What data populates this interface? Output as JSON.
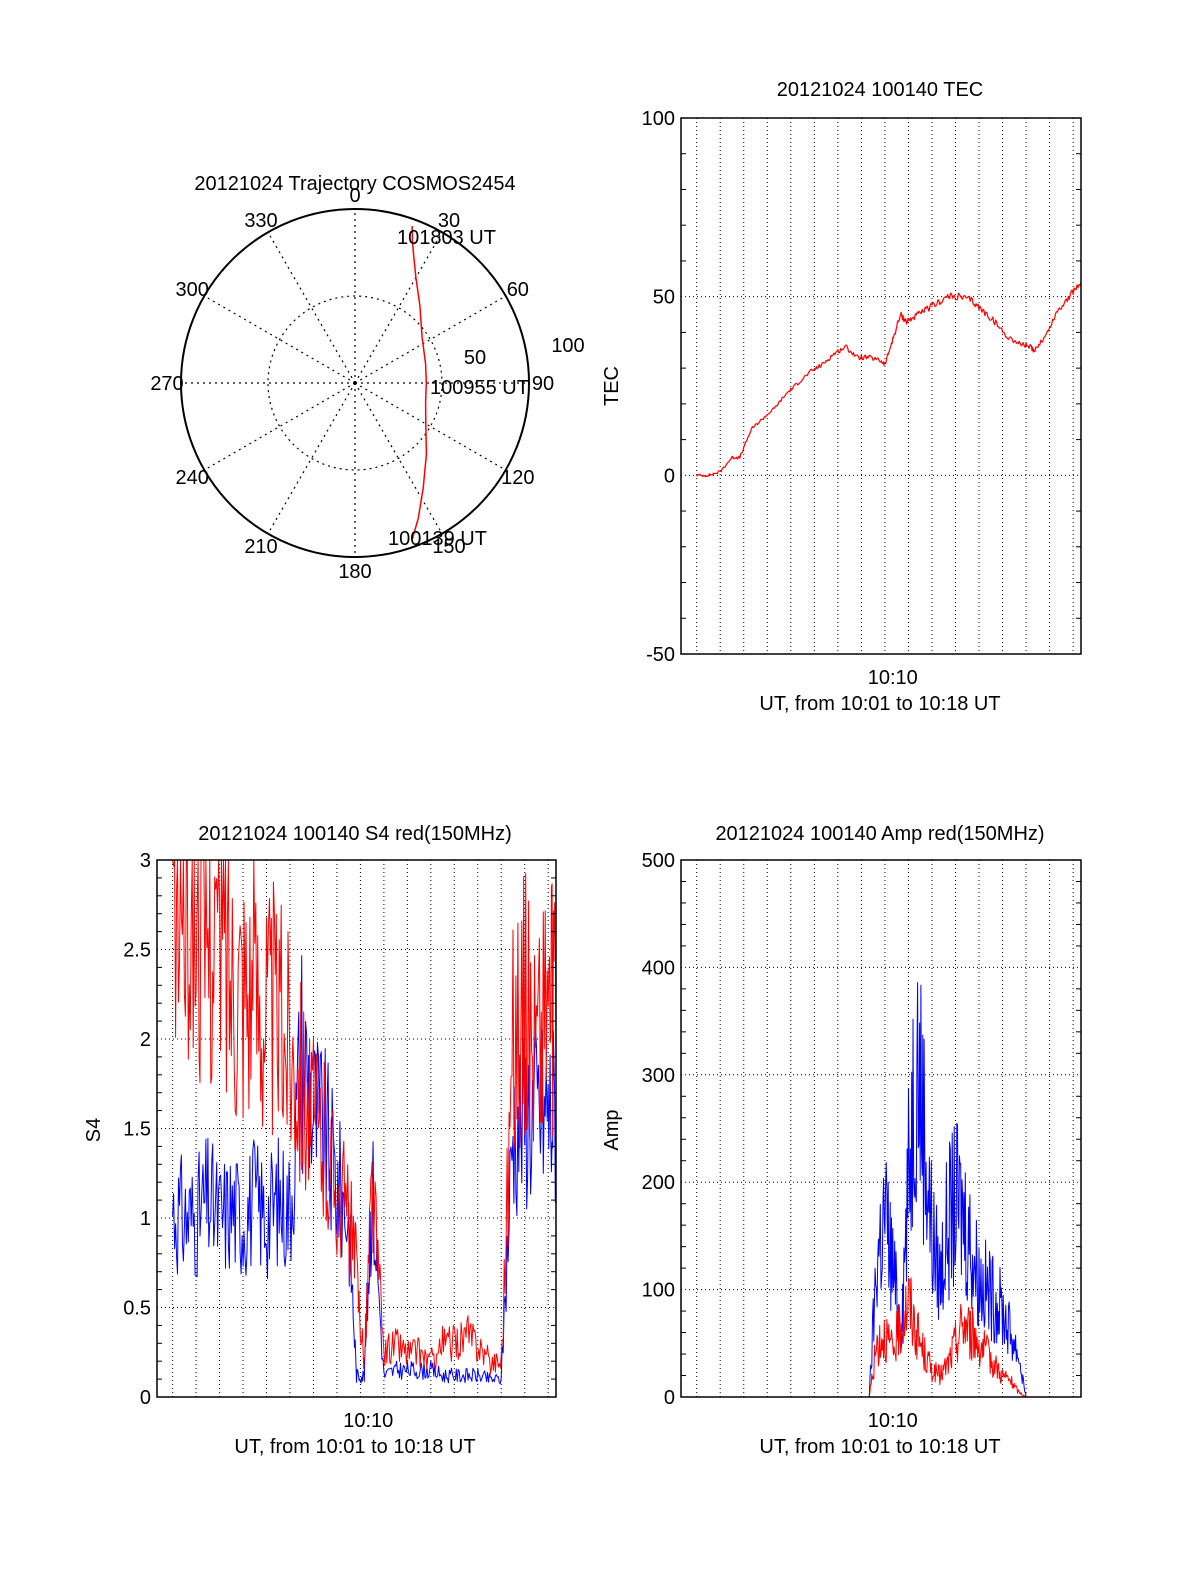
{
  "chart_data": [
    {
      "type": "polar",
      "title": "20121024 Trajectory COSMOS2454",
      "angle_labels": [
        "0",
        "30",
        "60",
        "90",
        "120",
        "150",
        "180",
        "210",
        "240",
        "270",
        "300",
        "330"
      ],
      "radial_labels": [
        "50",
        "100"
      ],
      "rlim": [
        0,
        100
      ],
      "annotations": {
        "start": "100139 UT",
        "mid": "100955 UT",
        "end": "101803 UT"
      },
      "colors": {
        "track": "#ff0000"
      },
      "series": [
        {
          "values_deg_az": [
            20,
            22,
            25,
            30,
            40,
            55,
            75,
            90,
            105,
            120,
            135,
            147,
            155,
            160
          ],
          "values_zenith": [
            96,
            88,
            80,
            70,
            58,
            47,
            42,
            41,
            42,
            47,
            58,
            72,
            86,
            96
          ]
        }
      ]
    },
    {
      "type": "line",
      "title": "20121024 100140 TEC",
      "xlabel": "UT, from 10:01 to 10:18 UT",
      "ylabel": "TEC",
      "xlim": [
        "10:01",
        "10:18"
      ],
      "ylim": [
        -50,
        100
      ],
      "x_ticks": [
        "10:10"
      ],
      "y_ticks": [
        "-50",
        "0",
        "50",
        "100"
      ],
      "grid": true,
      "colors": {
        "tec": "#ff0000"
      },
      "series": [
        {
          "x": [
            "10:01:40",
            "10:02:10",
            "10:02:40",
            "10:03:10",
            "10:03:30",
            "10:04:00",
            "10:04:30",
            "10:05:00",
            "10:05:30",
            "10:06:00",
            "10:06:30",
            "10:07:00",
            "10:07:30",
            "10:08:00",
            "10:08:30",
            "10:09:00",
            "10:09:30",
            "10:09:40",
            "10:10:00",
            "10:10:20",
            "10:10:35",
            "10:10:50",
            "10:11:20",
            "10:11:50",
            "10:12:20",
            "10:12:50",
            "10:13:20",
            "10:13:50",
            "10:14:20",
            "10:14:50",
            "10:15:20",
            "10:15:50",
            "10:16:00",
            "10:16:30",
            "10:17:00",
            "10:17:30",
            "10:18:00"
          ],
          "y": [
            0,
            0,
            1,
            5,
            5,
            13,
            16,
            19,
            23,
            26,
            29,
            31,
            34,
            36,
            33,
            33,
            32,
            31,
            38,
            45,
            43,
            44,
            46,
            48,
            50,
            50,
            49,
            46,
            43,
            39,
            37,
            36,
            35,
            39,
            46,
            50,
            54
          ]
        }
      ]
    },
    {
      "type": "line",
      "title": "20121024 100140 S4 red(150MHz)",
      "xlabel": "UT, from 10:01 to 10:18 UT",
      "ylabel": "S4",
      "xlim": [
        "10:01",
        "10:18"
      ],
      "ylim": [
        0,
        3
      ],
      "x_ticks": [
        "10:10"
      ],
      "y_ticks": [
        "0",
        "0.5",
        "1",
        "1.5",
        "2",
        "2.5",
        "3"
      ],
      "grid": true,
      "colors": {
        "blue": "#0000ff",
        "red": "#ff0000"
      },
      "series": [
        {
          "x": [
            "10:01:40",
            "10:02:10",
            "10:02:40",
            "10:03:10",
            "10:03:40",
            "10:04:10",
            "10:04:40",
            "10:05:10",
            "10:05:40",
            "10:06:10",
            "10:06:40",
            "10:07:10",
            "10:07:40",
            "10:08:10",
            "10:08:40",
            "10:09:10",
            "10:09:30",
            "10:09:50",
            "10:10:10",
            "10:10:40",
            "10:11:10",
            "10:11:40",
            "10:12:10",
            "10:12:40",
            "10:13:10",
            "10:13:40",
            "10:14:10",
            "10:14:40",
            "10:15:10",
            "10:15:40",
            "10:16:10",
            "10:16:40",
            "10:17:10",
            "10:17:40",
            "10:18:00"
          ],
          "y": [
            1.05,
            1.0,
            1.0,
            1.1,
            1.0,
            1.05,
            1.0,
            1.1,
            1.0,
            1.1,
            1.05,
            1.95,
            1.6,
            1.45,
            1.2,
            1.0,
            0.12,
            0.12,
            1.2,
            0.12,
            0.15,
            0.15,
            0.15,
            0.15,
            0.12,
            0.12,
            0.12,
            0.12,
            0.1,
            0.1,
            1.5,
            1.6,
            1.6,
            1.6,
            1.6
          ]
        },
        {
          "x": [
            "10:01:40",
            "10:02:10",
            "10:02:40",
            "10:03:10",
            "10:03:40",
            "10:04:10",
            "10:04:40",
            "10:05:10",
            "10:05:40",
            "10:06:10",
            "10:06:40",
            "10:07:10",
            "10:07:40",
            "10:08:10",
            "10:08:40",
            "10:09:10",
            "10:09:30",
            "10:09:50",
            "10:10:10",
            "10:10:40",
            "10:11:10",
            "10:11:40",
            "10:12:10",
            "10:12:40",
            "10:13:10",
            "10:13:40",
            "10:14:10",
            "10:14:40",
            "10:15:10",
            "10:15:40",
            "10:16:10",
            "10:16:40",
            "10:17:10",
            "10:17:40",
            "10:18:00"
          ],
          "y": [
            2.9,
            2.8,
            2.7,
            2.6,
            2.6,
            2.4,
            2.4,
            2.3,
            2.2,
            2.1,
            2.0,
            1.8,
            1.5,
            1.4,
            1.2,
            1.0,
            0.7,
            0.2,
            1.2,
            0.25,
            0.3,
            0.25,
            0.25,
            0.2,
            0.3,
            0.3,
            0.35,
            0.3,
            0.2,
            0.2,
            2.0,
            2.2,
            2.0,
            2.3,
            2.0
          ]
        }
      ]
    },
    {
      "type": "line",
      "title": "20121024 100140 Amp red(150MHz)",
      "xlabel": "UT, from 10:01 to 10:18 UT",
      "ylabel": "Amp",
      "xlim": [
        "10:01",
        "10:18"
      ],
      "ylim": [
        0,
        500
      ],
      "x_ticks": [
        "10:10"
      ],
      "y_ticks": [
        "0",
        "100",
        "200",
        "300",
        "400",
        "500"
      ],
      "grid": true,
      "colors": {
        "blue": "#0000ff",
        "red": "#ff0000"
      },
      "series": [
        {
          "x": [
            "10:01:00",
            "10:08:00",
            "10:09:00",
            "10:09:20",
            "10:09:40",
            "10:10:00",
            "10:10:20",
            "10:10:40",
            "10:11:00",
            "10:11:20",
            "10:11:40",
            "10:12:00",
            "10:12:20",
            "10:12:40",
            "10:13:00",
            "10:13:20",
            "10:13:40",
            "10:14:00",
            "10:14:20",
            "10:14:40",
            "10:15:00",
            "10:15:20",
            "10:15:40",
            "10:16:00",
            "10:18:00"
          ],
          "y": [
            0,
            0,
            0,
            130,
            170,
            120,
            60,
            200,
            330,
            250,
            150,
            110,
            160,
            180,
            170,
            140,
            110,
            100,
            90,
            80,
            60,
            40,
            0,
            0,
            0
          ]
        },
        {
          "x": [
            "10:01:00",
            "10:08:00",
            "10:09:00",
            "10:09:20",
            "10:09:40",
            "10:10:00",
            "10:10:20",
            "10:10:40",
            "10:11:00",
            "10:11:20",
            "10:11:40",
            "10:12:00",
            "10:12:20",
            "10:12:40",
            "10:13:00",
            "10:13:20",
            "10:13:40",
            "10:14:00",
            "10:14:20",
            "10:14:40",
            "10:15:00",
            "10:15:20",
            "10:15:40",
            "10:16:00",
            "10:18:00"
          ],
          "y": [
            0,
            0,
            0,
            50,
            60,
            40,
            70,
            90,
            60,
            40,
            25,
            20,
            30,
            50,
            70,
            60,
            50,
            40,
            30,
            20,
            15,
            5,
            0,
            0,
            0
          ]
        }
      ]
    }
  ]
}
